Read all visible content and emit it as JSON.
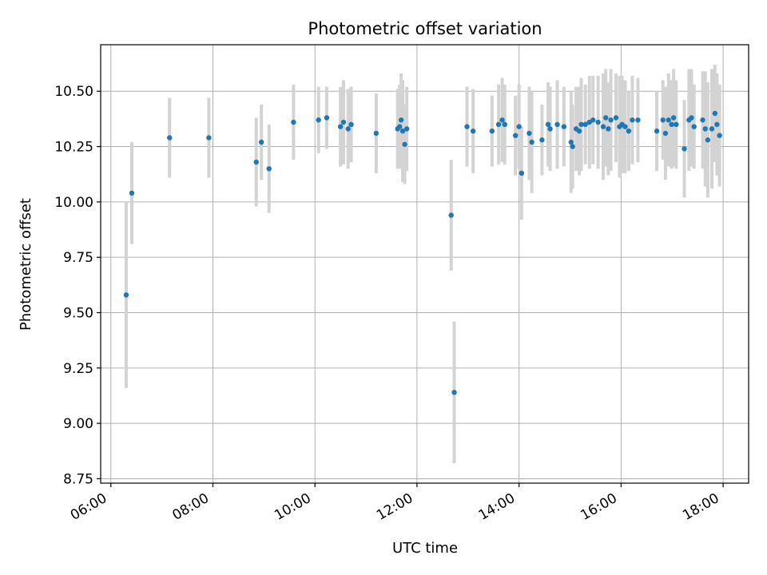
{
  "chart_data": {
    "type": "scatter",
    "title": "Photometric offset variation",
    "xlabel": "UTC time",
    "ylabel": "Photometric offset",
    "x_unit": "UTC time of day (hours)",
    "xlim": [
      5.8,
      18.5
    ],
    "ylim": [
      8.73,
      10.71
    ],
    "x_ticks": [
      6,
      8,
      10,
      12,
      14,
      16,
      18
    ],
    "x_tick_labels": [
      "06:00",
      "08:00",
      "10:00",
      "12:00",
      "14:00",
      "16:00",
      "18:00"
    ],
    "y_ticks": [
      8.75,
      9.0,
      9.25,
      9.5,
      9.75,
      10.0,
      10.25,
      10.5
    ],
    "y_tick_labels": [
      "8.75",
      "9.00",
      "9.25",
      "9.50",
      "9.75",
      "10.00",
      "10.25",
      "10.50"
    ],
    "grid": true,
    "colors": {
      "point": "#1f77b4",
      "errorbar": "#d3d3d3",
      "grid": "#b0b0b0"
    },
    "series": [
      {
        "x": [
          6.3,
          6.41,
          7.15,
          7.92,
          8.85,
          8.95,
          9.1,
          9.58,
          10.07,
          10.23,
          10.5,
          10.56,
          10.65,
          10.71,
          11.2,
          11.62,
          11.66,
          11.69,
          11.72,
          11.76,
          11.8,
          12.67,
          12.73,
          12.98,
          13.1,
          13.47,
          13.6,
          13.67,
          13.72,
          13.93,
          14.0,
          14.05,
          14.2,
          14.25,
          14.45,
          14.57,
          14.61,
          14.75,
          14.88,
          15.02,
          15.05,
          15.12,
          15.18,
          15.22,
          15.3,
          15.38,
          15.45,
          15.55,
          15.65,
          15.7,
          15.75,
          15.8,
          15.9,
          15.97,
          16.02,
          16.08,
          16.15,
          16.22,
          16.33,
          16.7,
          16.82,
          16.87,
          16.93,
          16.99,
          17.03,
          17.08,
          17.24,
          17.33,
          17.38,
          17.43,
          17.6,
          17.65,
          17.7,
          17.78,
          17.84,
          17.88,
          17.93
        ],
        "y": [
          9.58,
          10.04,
          10.29,
          10.29,
          10.18,
          10.27,
          10.15,
          10.36,
          10.37,
          10.38,
          10.34,
          10.36,
          10.33,
          10.35,
          10.31,
          10.33,
          10.34,
          10.37,
          10.32,
          10.26,
          10.33,
          9.94,
          9.14,
          10.34,
          10.32,
          10.32,
          10.35,
          10.37,
          10.35,
          10.3,
          10.34,
          10.13,
          10.31,
          10.27,
          10.28,
          10.35,
          10.33,
          10.35,
          10.34,
          10.27,
          10.25,
          10.33,
          10.32,
          10.35,
          10.35,
          10.36,
          10.37,
          10.36,
          10.34,
          10.38,
          10.33,
          10.37,
          10.38,
          10.34,
          10.35,
          10.34,
          10.32,
          10.37,
          10.37,
          10.32,
          10.37,
          10.31,
          10.37,
          10.35,
          10.38,
          10.35,
          10.24,
          10.37,
          10.38,
          10.34,
          10.37,
          10.33,
          10.28,
          10.33,
          10.4,
          10.35,
          10.3
        ],
        "err": [
          0.42,
          0.23,
          0.18,
          0.18,
          0.2,
          0.17,
          0.2,
          0.17,
          0.15,
          0.14,
          0.18,
          0.19,
          0.18,
          0.17,
          0.18,
          0.18,
          0.19,
          0.21,
          0.23,
          0.18,
          0.19,
          0.25,
          0.32,
          0.18,
          0.19,
          0.16,
          0.18,
          0.19,
          0.18,
          0.18,
          0.19,
          0.21,
          0.21,
          0.23,
          0.16,
          0.19,
          0.19,
          0.2,
          0.18,
          0.23,
          0.19,
          0.19,
          0.2,
          0.21,
          0.18,
          0.21,
          0.2,
          0.21,
          0.24,
          0.22,
          0.21,
          0.23,
          0.2,
          0.23,
          0.22,
          0.21,
          0.18,
          0.2,
          0.19,
          0.18,
          0.18,
          0.21,
          0.21,
          0.2,
          0.22,
          0.2,
          0.22,
          0.23,
          0.22,
          0.19,
          0.22,
          0.26,
          0.26,
          0.27,
          0.22,
          0.23,
          0.23
        ]
      }
    ]
  }
}
